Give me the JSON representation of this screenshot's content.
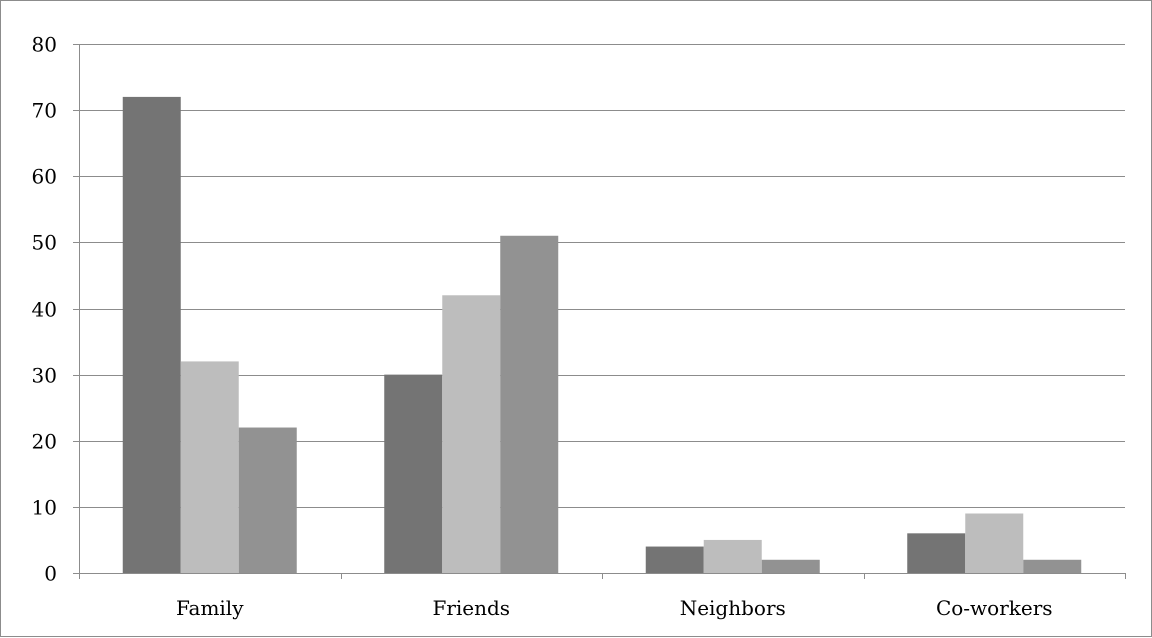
{
  "chart_data": {
    "type": "bar",
    "title": "",
    "xlabel": "",
    "ylabel": "",
    "categories": [
      "Family",
      "Friends",
      "Neighbors",
      "Co-workers"
    ],
    "series": [
      {
        "values": [
          72,
          30,
          4,
          6
        ],
        "color": "#747474"
      },
      {
        "values": [
          32,
          42,
          5,
          9
        ],
        "color": "#bdbdbd"
      },
      {
        "values": [
          22,
          51,
          2,
          2
        ],
        "color": "#929292"
      }
    ],
    "ylim": [
      0,
      80
    ],
    "yticks": [
      "0",
      "10",
      "20",
      "30",
      "40",
      "50",
      "60",
      "70",
      "80"
    ],
    "grid": true,
    "legend": "none",
    "gridline_color": "#8c8c8c",
    "axis_color": "#8c8c8c"
  }
}
